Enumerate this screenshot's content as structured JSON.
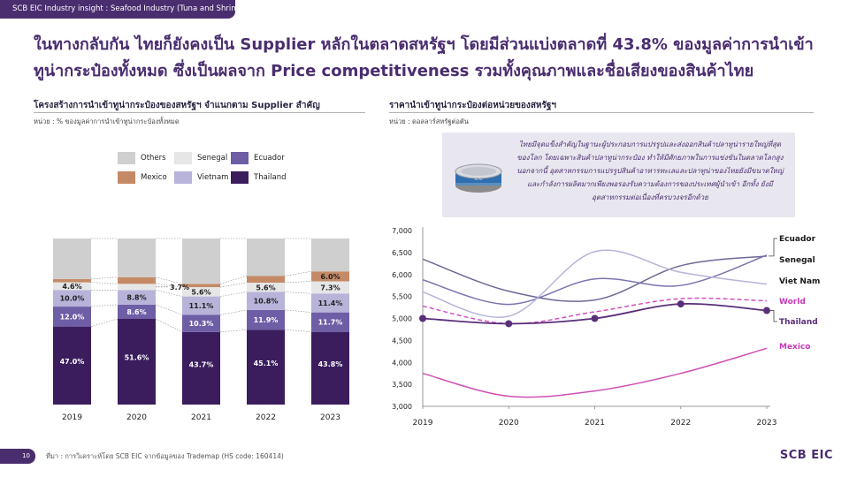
{
  "header": {
    "tag": "SCB EIC Industry insight : Seafood Industry (Tuna and Shrimp)"
  },
  "headline": "ในทางกลับกัน ไทยก็ยังคงเป็น Supplier หลักในตลาดสหรัฐฯ โดยมีส่วนแบ่งตลาดที่ 43.8% ของมูลค่าการนำเข้าทูน่ากระป๋องทั้งหมด ซึ่งเป็นผลจาก Price competitiveness รวมทั้งคุณภาพและชื่อเสียงของสินค้าไทย",
  "left_panel": {
    "title": "โครงสร้างการนำเข้าทูน่ากระป๋องของสหรัฐฯ จำแนกตาม Supplier สำคัญ",
    "unit": "หน่วย : % ของมูลค่าการนำเข้าทูน่ากระป๋องทั้งหมด"
  },
  "right_panel": {
    "title": "ราคานำเข้าทูน่ากระป๋องต่อหน่วยของสหรัฐฯ",
    "unit": "หน่วย : ดอลลาร์สหรัฐต่อตัน",
    "info_text": "ไทยมีจุดแข็งสำคัญในฐานะผู้ประกอบการแปรรูปและส่งออกสินค้าปลาทูน่ารายใหญ่ที่สุดของโลก โดยเฉพาะสินค้าปลาทูน่ากระป๋อง ทำให้มีศักยภาพในการแข่งขันในตลาดโลกสูง นอกจากนี้ อุตสาหกรรมการแปรรูปสินค้าอาหารทะเลและปลาทูน่าของไทยยังมีขนาดใหญ่และกำลังการผลิตมากเพียงพอรองรับความต้องการของประเทศผู้นำเข้า อีกทั้ง ยังมีอุตสาหกรรมต่อเนื่องที่ครบวงจรอีกด้วย",
    "info_icon": "tuna-can-icon"
  },
  "chart_data": [
    {
      "type": "bar",
      "stacked": true,
      "categories": [
        "2019",
        "2020",
        "2021",
        "2022",
        "2023"
      ],
      "series": [
        {
          "name": "Thailand",
          "color": "#3b1d5e",
          "values": [
            47.0,
            51.6,
            43.7,
            45.1,
            43.8
          ],
          "labels": [
            "47.0%",
            "51.6%",
            "43.7%",
            "45.1%",
            "43.8%"
          ],
          "label_color": "#ffffff"
        },
        {
          "name": "Ecuador",
          "color": "#6e5ea6",
          "values": [
            12.0,
            8.6,
            10.3,
            11.9,
            11.7
          ],
          "labels": [
            "12.0%",
            "8.6%",
            "10.3%",
            "11.9%",
            "11.7%"
          ],
          "label_color": "#ffffff"
        },
        {
          "name": "Vietnam",
          "color": "#b7b3d9",
          "values": [
            10.0,
            8.8,
            11.1,
            10.8,
            11.4
          ],
          "labels": [
            "10.0%",
            "8.8%",
            "11.1%",
            "10.8%",
            "11.4%"
          ],
          "label_color": "#222222"
        },
        {
          "name": "Senegal",
          "color": "#e6e6e6",
          "values": [
            4.6,
            3.7,
            5.6,
            5.6,
            7.3
          ],
          "labels": [
            "4.6%",
            "3.7%",
            "5.6%",
            "5.6%",
            "7.3%"
          ],
          "label_color": "#222222"
        },
        {
          "name": "Mexico",
          "color": "#c48a66",
          "values": [
            2.0,
            4.0,
            2.0,
            4.0,
            6.0
          ],
          "labels": [
            "",
            "",
            "",
            "",
            "6.0%"
          ],
          "label_color": "#222222"
        },
        {
          "name": "Others",
          "color": "#cfcfcf",
          "values": [
            24.4,
            23.3,
            27.3,
            22.6,
            19.8
          ],
          "labels": [
            "",
            "",
            "",
            "",
            ""
          ],
          "label_color": "#222222"
        }
      ],
      "callouts": [
        {
          "category": "2020",
          "series": "Senegal",
          "label": "3.7%"
        }
      ],
      "legend_order": [
        "Others",
        "Senegal",
        "Ecuador",
        "Mexico",
        "Vietnam",
        "Thailand"
      ],
      "ylim": [
        0,
        100
      ]
    },
    {
      "type": "line",
      "x": [
        "2019",
        "2020",
        "2021",
        "2022",
        "2023"
      ],
      "series": [
        {
          "name": "Ecuador",
          "color": "#6c6a96",
          "dash": false,
          "markers": false,
          "values": [
            6350,
            5620,
            5420,
            6200,
            6420
          ]
        },
        {
          "name": "Senegal",
          "color": "#7b74b1",
          "dash": false,
          "markers": false,
          "values": [
            5880,
            5320,
            5900,
            5750,
            6440
          ]
        },
        {
          "name": "Viet Nam",
          "color": "#b7b3d9",
          "dash": false,
          "markers": false,
          "values": [
            5600,
            5050,
            6520,
            6050,
            5780
          ]
        },
        {
          "name": "World",
          "color": "#d24fc0",
          "dash": true,
          "markers": false,
          "values": [
            5280,
            4880,
            5150,
            5450,
            5400
          ]
        },
        {
          "name": "Thailand",
          "color": "#5a2e79",
          "dash": false,
          "markers": true,
          "values": [
            5000,
            4880,
            5000,
            5330,
            5180
          ]
        },
        {
          "name": "Mexico",
          "color": "#cf4fb5",
          "dash": false,
          "markers": false,
          "values": [
            3750,
            3230,
            3350,
            3750,
            4320
          ]
        }
      ],
      "label_colors": {
        "Ecuador": "#1a1a1a",
        "Senegal": "#1a1a1a",
        "Viet Nam": "#1a1a1a",
        "World": "#c53ab8",
        "Thailand": "#5a2e79",
        "Mexico": "#c53ab8"
      },
      "yticks": [
        "7,000",
        "6,500",
        "6,000",
        "5,500",
        "5,000",
        "4,500",
        "4,000",
        "3,500",
        "3,000"
      ],
      "ylim": [
        3000,
        7000
      ],
      "grid": false,
      "legend": "right"
    }
  ],
  "footer": {
    "page": "10",
    "source": "ที่มา : การวิเคราะห์โดย SCB EIC จากข้อมูลของ Trademap (HS code: 160414)",
    "logo": "SCB EIC"
  }
}
